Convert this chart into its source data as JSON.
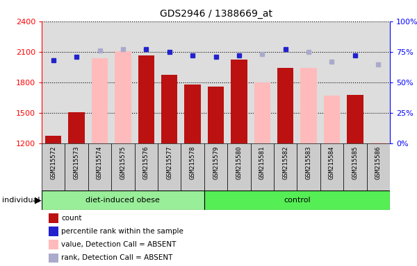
{
  "title": "GDS2946 / 1388669_at",
  "samples": [
    "GSM215572",
    "GSM215573",
    "GSM215574",
    "GSM215575",
    "GSM215576",
    "GSM215577",
    "GSM215578",
    "GSM215579",
    "GSM215580",
    "GSM215581",
    "GSM215582",
    "GSM215583",
    "GSM215584",
    "GSM215585",
    "GSM215586"
  ],
  "count_values": [
    1280,
    1505,
    null,
    null,
    2065,
    1875,
    1780,
    1760,
    2025,
    null,
    1940,
    null,
    null,
    1675,
    null
  ],
  "absent_values": [
    null,
    null,
    2040,
    2105,
    null,
    null,
    null,
    null,
    null,
    1800,
    null,
    1940,
    1670,
    null,
    1210
  ],
  "percentile_rank": [
    68,
    71,
    null,
    null,
    77,
    75,
    72,
    71,
    72,
    null,
    77,
    null,
    null,
    72,
    null
  ],
  "absent_rank": [
    null,
    null,
    76,
    77,
    null,
    null,
    null,
    null,
    null,
    73,
    null,
    75,
    67,
    null,
    65
  ],
  "ylim_left": [
    1200,
    2400
  ],
  "ylim_right": [
    0,
    100
  ],
  "yticks_left": [
    1200,
    1500,
    1800,
    2100,
    2400
  ],
  "yticks_right": [
    0,
    25,
    50,
    75,
    100
  ],
  "bar_color_present": "#bb1111",
  "bar_color_absent": "#ffbbbb",
  "dot_color_present": "#2222cc",
  "dot_color_absent": "#aaaacc",
  "bg_plot": "#dddddd",
  "bg_xtick": "#cccccc",
  "group_obese_color": "#99ee99",
  "group_control_color": "#55ee55",
  "obese_count": 7,
  "control_count": 8,
  "legend_items": [
    "count",
    "percentile rank within the sample",
    "value, Detection Call = ABSENT",
    "rank, Detection Call = ABSENT"
  ],
  "legend_colors": [
    "#bb1111",
    "#2222cc",
    "#ffbbbb",
    "#aaaacc"
  ]
}
